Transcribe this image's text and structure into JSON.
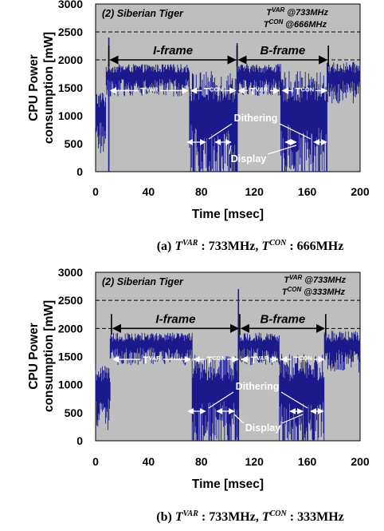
{
  "chart_data": [
    {
      "type": "area",
      "panel": "(a)",
      "title": "(2) Siberian Tiger",
      "freq_labels": [
        {
          "name": "T",
          "sup": "VAR",
          "text": " @733MHz"
        },
        {
          "name": "T",
          "sup": "CON",
          "text": " @666MHz"
        }
      ],
      "xlabel": "Time [msec]",
      "ylabel": [
        "CPU Power",
        "consumption [mW]"
      ],
      "xlim": [
        0,
        200
      ],
      "ylim": [
        0,
        3000
      ],
      "xticks": [
        "0",
        "40",
        "80",
        "120",
        "160",
        "200"
      ],
      "yticks": [
        "0",
        "500",
        "1000",
        "1500",
        "2000",
        "2500",
        "3000"
      ],
      "reference_lines": [
        2000,
        2500
      ],
      "series": [
        {
          "color": "#1a1a8c",
          "segments": [
            {
              "x": [
                0,
                8
              ],
              "level": 1200,
              "spread": 700
            },
            {
              "x": [
                8,
                71
              ],
              "level": 1800,
              "spread": 350
            },
            {
              "x": [
                71,
                107
              ],
              "level": 1350,
              "spread": 1250
            },
            {
              "x": [
                107,
                140
              ],
              "level": 1800,
              "spread": 350
            },
            {
              "x": [
                140,
                175
              ],
              "level": 1350,
              "spread": 1250
            },
            {
              "x": [
                175,
                200
              ],
              "level": 1800,
              "spread": 450
            }
          ],
          "spikes": [
            [
              10,
              2400
            ],
            [
              107,
              2300
            ]
          ]
        }
      ],
      "frames": [
        {
          "label": "I-frame",
          "x_start": 10,
          "x_end": 107,
          "y": 2000
        },
        {
          "label": "B-frame",
          "x_start": 107,
          "x_end": 176,
          "y": 2000
        }
      ],
      "intervals": [
        {
          "label": "T",
          "sup": "VAR",
          "x_start": 10,
          "x_end": 71,
          "y": 1450
        },
        {
          "label": "T",
          "sup": "CON",
          "x_start": 71,
          "x_end": 107,
          "y": 1450
        },
        {
          "label": "T",
          "sup": "VAR",
          "x_start": 107,
          "x_end": 140,
          "y": 1450
        },
        {
          "label": "T",
          "sup": "CON",
          "x_start": 140,
          "x_end": 176,
          "y": 1450
        }
      ],
      "annotations": [
        "Dithering",
        "Display"
      ],
      "caption": {
        "prefix": "(a) ",
        "t1": "T",
        "s1": "VAR",
        "m1": " : 733MHz, ",
        "t2": "T",
        "s2": "CON",
        "m2": " : 666MHz"
      }
    },
    {
      "type": "area",
      "panel": "(b)",
      "title": "(2) Siberian Tiger",
      "freq_labels": [
        {
          "name": "T",
          "sup": "VAR",
          "text": " @733MHz"
        },
        {
          "name": "T",
          "sup": "CON",
          "text": " @333MHz"
        }
      ],
      "xlabel": "Time [msec]",
      "ylabel": [
        "CPU Power",
        "consumption [mW]"
      ],
      "xlim": [
        0,
        200
      ],
      "ylim": [
        0,
        3000
      ],
      "xticks": [
        "0",
        "40",
        "80",
        "120",
        "160",
        "200"
      ],
      "yticks": [
        "0",
        "500",
        "1000",
        "1500",
        "2000",
        "2500",
        "3000"
      ],
      "reference_lines": [
        2000,
        2500
      ],
      "series": [
        {
          "color": "#1a1a8c",
          "segments": [
            {
              "x": [
                0,
                11
              ],
              "level": 1100,
              "spread": 700
            },
            {
              "x": [
                11,
                73
              ],
              "level": 1800,
              "spread": 350
            },
            {
              "x": [
                73,
                108
              ],
              "level": 1150,
              "spread": 1100
            },
            {
              "x": [
                108,
                139
              ],
              "level": 1800,
              "spread": 350
            },
            {
              "x": [
                139,
                173
              ],
              "level": 1150,
              "spread": 1100
            },
            {
              "x": [
                173,
                200
              ],
              "level": 1800,
              "spread": 450
            }
          ],
          "spikes": [
            [
              108,
              2700
            ]
          ]
        }
      ],
      "frames": [
        {
          "label": "I-frame",
          "x_start": 12,
          "x_end": 109,
          "y": 2000
        },
        {
          "label": "B-frame",
          "x_start": 109,
          "x_end": 174,
          "y": 2000
        }
      ],
      "intervals": [
        {
          "label": "T",
          "sup": "VAR",
          "x_start": 12,
          "x_end": 73,
          "y": 1450
        },
        {
          "label": "T",
          "sup": "CON",
          "x_start": 73,
          "x_end": 109,
          "y": 1450
        },
        {
          "label": "T",
          "sup": "VAR",
          "x_start": 109,
          "x_end": 139,
          "y": 1450
        },
        {
          "label": "T",
          "sup": "CON",
          "x_start": 139,
          "x_end": 174,
          "y": 1450
        }
      ],
      "annotations": [
        "Dithering",
        "Display"
      ],
      "caption": {
        "prefix": "(b) ",
        "t1": "T",
        "s1": "VAR",
        "m1": " : 733MHz, ",
        "t2": "T",
        "s2": "CON",
        "m2": " : 333MHz"
      }
    }
  ]
}
